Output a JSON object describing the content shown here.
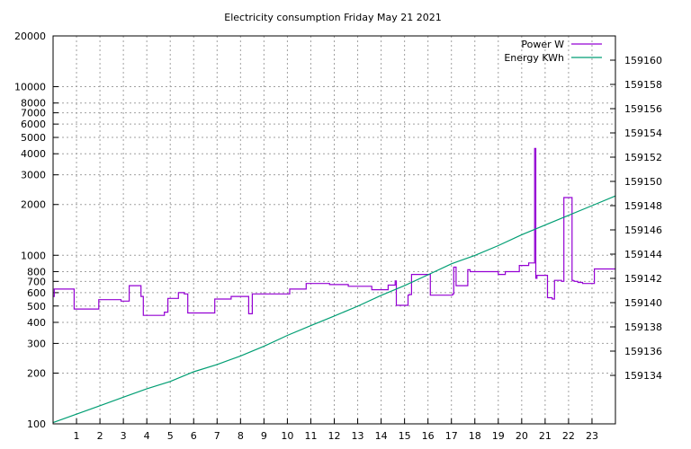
{
  "chart_data": {
    "type": "line",
    "title": "Electricity consumption Friday May 21 2021",
    "legend": "top-right",
    "grid": true,
    "x_ticks": [
      "1",
      "2",
      "3",
      "4",
      "5",
      "6",
      "7",
      "8",
      "9",
      "10",
      "11",
      "12",
      "13",
      "14",
      "15",
      "16",
      "17",
      "18",
      "19",
      "20",
      "21",
      "22",
      "23"
    ],
    "xlim": [
      0,
      24
    ],
    "y_left": {
      "scale": "log",
      "lim": [
        100,
        20000
      ],
      "tick_values": [
        100,
        200,
        300,
        400,
        500,
        600,
        700,
        800,
        1000,
        2000,
        3000,
        4000,
        5000,
        6000,
        7000,
        8000,
        10000,
        20000
      ],
      "tick_labels": [
        "100",
        "200",
        "300",
        "400",
        "500",
        "600",
        "700",
        "800",
        "1000",
        "2000",
        "3000",
        "4000",
        "5000",
        "6000",
        "7000",
        "8000",
        "10000",
        "20000"
      ]
    },
    "y_right": {
      "scale": "linear",
      "lim": [
        159130.0,
        159162.0
      ],
      "tick_values": [
        159134,
        159136,
        159138,
        159140,
        159142,
        159144,
        159146,
        159148,
        159150,
        159152,
        159154,
        159156,
        159158,
        159160
      ],
      "tick_labels": [
        "159134",
        "159136",
        "159138",
        "159140",
        "159142",
        "159144",
        "159146",
        "159148",
        "159150",
        "159152",
        "159154",
        "159156",
        "159158",
        "159160"
      ]
    },
    "series": [
      {
        "name": "Power W",
        "axis": "left",
        "color": "#9400d3",
        "step": true,
        "x": [
          0,
          0.05,
          0.85,
          0.9,
          1.95,
          2.9,
          3.25,
          3.75,
          3.85,
          4.25,
          4.35,
          4.75,
          4.9,
          5.1,
          5.35,
          5.6,
          5.75,
          6.4,
          6.9,
          7.6,
          8.35,
          8.5,
          8.95,
          10.1,
          10.8,
          11.8,
          12.6,
          13.6,
          14.3,
          14.6,
          14.65,
          15.15,
          15.2,
          15.3,
          15.9,
          16.1,
          16.2,
          16.8,
          17.0,
          17.05,
          17.1,
          17.2,
          17.7,
          17.8,
          18.3,
          19.0,
          19.3,
          19.6,
          19.9,
          20.3,
          20.55,
          20.6,
          20.65,
          20.7,
          21.0,
          21.1,
          21.3,
          21.4,
          21.7,
          21.8,
          22.15,
          22.2,
          22.25,
          22.4,
          22.6,
          22.95,
          23.1,
          23.5,
          23.9
        ],
        "y": [
          570,
          630,
          630,
          480,
          545,
          535,
          660,
          570,
          440,
          440,
          440,
          460,
          555,
          555,
          600,
          590,
          455,
          455,
          550,
          570,
          450,
          590,
          590,
          630,
          680,
          670,
          655,
          625,
          665,
          705,
          505,
          580,
          585,
          770,
          770,
          580,
          580,
          580,
          580,
          590,
          850,
          660,
          820,
          800,
          800,
          770,
          800,
          800,
          870,
          900,
          4300,
          730,
          760,
          760,
          760,
          560,
          550,
          710,
          700,
          2200,
          710,
          705,
          700,
          690,
          680,
          680,
          830,
          830,
          830
        ]
      },
      {
        "name": "Energy KWh",
        "axis": "right",
        "color": "#009e73",
        "step": false,
        "x": [
          0,
          1,
          2,
          3,
          4,
          5,
          6,
          7,
          8,
          9,
          10,
          11,
          12,
          13,
          14,
          15,
          16,
          17,
          18,
          19,
          20,
          21,
          22,
          23,
          24
        ],
        "y": [
          159130.1,
          159130.8,
          159131.5,
          159132.2,
          159132.9,
          159133.5,
          159134.3,
          159134.9,
          159135.6,
          159136.4,
          159137.3,
          159138.1,
          159138.9,
          159139.7,
          159140.6,
          159141.4,
          159142.3,
          159143.2,
          159143.9,
          159144.7,
          159145.6,
          159146.4,
          159147.2,
          159148.0,
          159148.8
        ]
      }
    ]
  }
}
